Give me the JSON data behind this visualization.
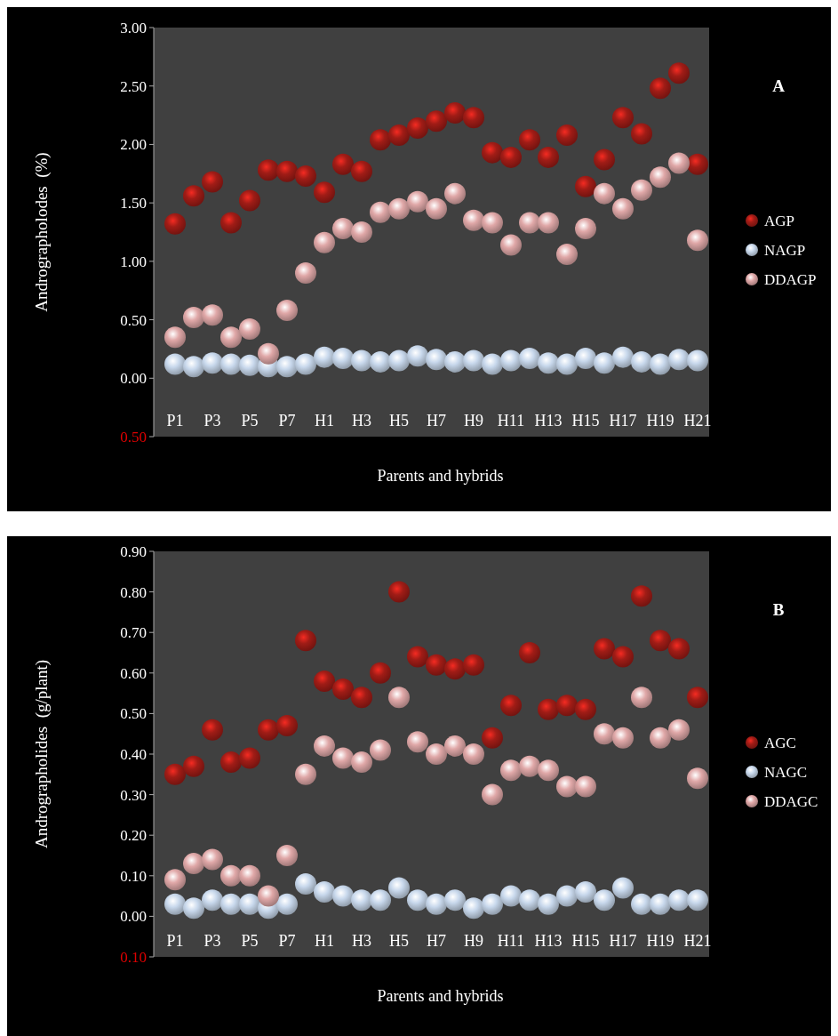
{
  "chart_data": [
    {
      "type": "scatter",
      "annotations": [
        "A"
      ],
      "xlabel": "Parents and hybrids",
      "ylabel": "Andrographolodes  (%)",
      "categories": [
        "P1",
        null,
        "P3",
        null,
        "P5",
        null,
        "P7",
        null,
        "H1",
        null,
        "H3",
        null,
        "H5",
        null,
        "H7",
        null,
        "H9",
        null,
        "H11",
        null,
        "H13",
        null,
        "H15",
        null,
        "H17",
        null,
        "H19",
        null,
        "H21"
      ],
      "ylim": [
        -0.5,
        3
      ],
      "yticks": [
        {
          "value": -0.5,
          "label": "0.50"
        },
        {
          "value": 0,
          "label": "0.00"
        },
        {
          "value": 0.5,
          "label": "0.50"
        },
        {
          "value": 1,
          "label": "1.00"
        },
        {
          "value": 1.5,
          "label": "1.50"
        },
        {
          "value": 2,
          "label": "2.00"
        },
        {
          "value": 2.5,
          "label": "2.50"
        },
        {
          "value": 3,
          "label": "3.00"
        }
      ],
      "legend": "right",
      "marker": "circle",
      "grid": false,
      "series": [
        {
          "name": "AGP",
          "color": "#a01c16",
          "values": [
            1.32,
            1.56,
            1.68,
            1.33,
            1.52,
            1.78,
            1.77,
            1.73,
            1.59,
            1.83,
            1.77,
            2.04,
            2.08,
            2.14,
            2.2,
            2.27,
            2.23,
            1.93,
            1.89,
            2.04,
            1.89,
            2.08,
            1.64,
            1.87,
            2.23,
            2.09,
            2.48,
            2.61,
            1.83
          ]
        },
        {
          "name": "NAGP",
          "color": "#c8d8ec",
          "values": [
            0.12,
            0.1,
            0.13,
            0.12,
            0.11,
            0.1,
            0.1,
            0.12,
            0.18,
            0.17,
            0.15,
            0.14,
            0.15,
            0.19,
            0.16,
            0.14,
            0.15,
            0.12,
            0.15,
            0.17,
            0.13,
            0.12,
            0.17,
            0.13,
            0.18,
            0.14,
            0.12,
            0.16,
            0.15
          ]
        },
        {
          "name": "DDAGP",
          "color": "#e0a8a8",
          "values": [
            0.35,
            0.52,
            0.54,
            0.35,
            0.42,
            0.21,
            0.58,
            0.9,
            1.16,
            1.28,
            1.25,
            1.42,
            1.45,
            1.51,
            1.45,
            1.58,
            1.35,
            1.33,
            1.14,
            1.33,
            1.33,
            1.06,
            1.28,
            1.58,
            1.45,
            1.61,
            1.72,
            1.84,
            1.18
          ]
        }
      ]
    },
    {
      "type": "scatter",
      "annotations": [
        "B"
      ],
      "xlabel": "Parents and hybrids",
      "ylabel": "Andrographolides  (g/plant)",
      "categories": [
        "P1",
        null,
        "P3",
        null,
        "P5",
        null,
        "P7",
        null,
        "H1",
        null,
        "H3",
        null,
        "H5",
        null,
        "H7",
        null,
        "H9",
        null,
        "H11",
        null,
        "H13",
        null,
        "H15",
        null,
        "H17",
        null,
        "H19",
        null,
        "H21"
      ],
      "ylim": [
        -0.1,
        0.9
      ],
      "yticks": [
        {
          "value": -0.1,
          "label": "0.10"
        },
        {
          "value": 0,
          "label": "0.00"
        },
        {
          "value": 0.1,
          "label": "0.10"
        },
        {
          "value": 0.2,
          "label": "0.20"
        },
        {
          "value": 0.3,
          "label": "0.30"
        },
        {
          "value": 0.4,
          "label": "0.40"
        },
        {
          "value": 0.5,
          "label": "0.50"
        },
        {
          "value": 0.6,
          "label": "0.60"
        },
        {
          "value": 0.7,
          "label": "0.70"
        },
        {
          "value": 0.8,
          "label": "0.80"
        },
        {
          "value": 0.9,
          "label": "0.90"
        }
      ],
      "legend": "right",
      "marker": "circle",
      "grid": false,
      "series": [
        {
          "name": "AGC",
          "color": "#a01c16",
          "values": [
            0.35,
            0.37,
            0.46,
            0.38,
            0.39,
            0.46,
            0.47,
            0.68,
            0.58,
            0.56,
            0.54,
            0.6,
            0.8,
            0.64,
            0.62,
            0.61,
            0.62,
            0.44,
            0.52,
            0.65,
            0.51,
            0.52,
            0.51,
            0.66,
            0.64,
            0.79,
            0.68,
            0.66,
            0.54
          ]
        },
        {
          "name": "NAGC",
          "color": "#c8d8ec",
          "values": [
            0.03,
            0.02,
            0.04,
            0.03,
            0.03,
            0.02,
            0.03,
            0.08,
            0.06,
            0.05,
            0.04,
            0.04,
            0.07,
            0.04,
            0.03,
            0.04,
            0.02,
            0.03,
            0.05,
            0.04,
            0.03,
            0.05,
            0.06,
            0.04,
            0.07,
            0.03,
            0.03,
            0.04,
            0.04
          ]
        },
        {
          "name": "DDAGC",
          "color": "#e0a8a8",
          "values": [
            0.09,
            0.13,
            0.14,
            0.1,
            0.1,
            0.05,
            0.15,
            0.35,
            0.42,
            0.39,
            0.38,
            0.41,
            0.54,
            0.43,
            0.4,
            0.42,
            0.4,
            0.3,
            0.36,
            0.37,
            0.36,
            0.32,
            0.32,
            0.45,
            0.44,
            0.54,
            0.44,
            0.46,
            0.34
          ]
        }
      ]
    }
  ]
}
